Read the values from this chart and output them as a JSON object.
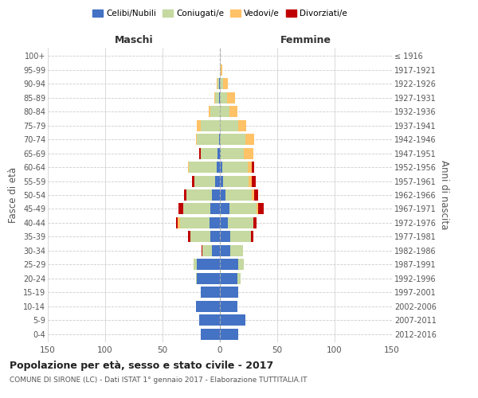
{
  "age_groups": [
    "0-4",
    "5-9",
    "10-14",
    "15-19",
    "20-24",
    "25-29",
    "30-34",
    "35-39",
    "40-44",
    "45-49",
    "50-54",
    "55-59",
    "60-64",
    "65-69",
    "70-74",
    "75-79",
    "80-84",
    "85-89",
    "90-94",
    "95-99",
    "100+"
  ],
  "birth_years": [
    "2012-2016",
    "2007-2011",
    "2002-2006",
    "1997-2001",
    "1992-1996",
    "1987-1991",
    "1982-1986",
    "1977-1981",
    "1972-1976",
    "1967-1971",
    "1962-1966",
    "1957-1961",
    "1952-1956",
    "1947-1951",
    "1942-1946",
    "1937-1941",
    "1932-1936",
    "1927-1931",
    "1922-1926",
    "1917-1921",
    "≤ 1916"
  ],
  "colors": {
    "celibi": "#4472c4",
    "coniugati": "#c5d9a0",
    "vedovi": "#ffc266",
    "divorziati": "#c00000",
    "background": "#ffffff",
    "grid": "#cccccc",
    "axis_text": "#555555"
  },
  "maschi": {
    "celibi": [
      17,
      18,
      21,
      17,
      20,
      20,
      7,
      8,
      9,
      8,
      7,
      4,
      3,
      2,
      1,
      0,
      0,
      1,
      1,
      0,
      0
    ],
    "coniugati": [
      0,
      0,
      0,
      0,
      1,
      3,
      8,
      18,
      26,
      24,
      22,
      18,
      24,
      15,
      19,
      17,
      8,
      3,
      1,
      0,
      0
    ],
    "vedovi": [
      0,
      0,
      0,
      0,
      0,
      0,
      0,
      0,
      2,
      0,
      0,
      0,
      1,
      0,
      1,
      3,
      2,
      1,
      1,
      0,
      0
    ],
    "divorziati": [
      0,
      0,
      0,
      0,
      0,
      0,
      1,
      2,
      1,
      4,
      2,
      2,
      0,
      1,
      0,
      0,
      0,
      0,
      0,
      0,
      0
    ]
  },
  "femmine": {
    "celibi": [
      16,
      22,
      15,
      16,
      15,
      16,
      9,
      9,
      7,
      8,
      5,
      3,
      2,
      1,
      0,
      0,
      0,
      0,
      0,
      0,
      0
    ],
    "coniugati": [
      0,
      0,
      0,
      0,
      3,
      5,
      11,
      18,
      22,
      24,
      23,
      22,
      22,
      20,
      22,
      16,
      8,
      6,
      3,
      1,
      0
    ],
    "vedovi": [
      0,
      0,
      0,
      0,
      0,
      0,
      0,
      0,
      0,
      1,
      2,
      3,
      4,
      8,
      8,
      7,
      7,
      7,
      4,
      1,
      0
    ],
    "divorziati": [
      0,
      0,
      0,
      0,
      0,
      0,
      0,
      2,
      3,
      5,
      3,
      3,
      2,
      0,
      0,
      0,
      0,
      0,
      0,
      0,
      0
    ]
  },
  "xlim": 150,
  "title": "Popolazione per età, sesso e stato civile - 2017",
  "subtitle": "COMUNE DI SIRONE (LC) - Dati ISTAT 1° gennaio 2017 - Elaborazione TUTTITALIA.IT",
  "xlabel_left": "Maschi",
  "xlabel_right": "Femmine",
  "ylabel_left": "Fasce di età",
  "ylabel_right": "Anni di nascita",
  "legend_labels": [
    "Celibi/Nubili",
    "Coniugati/e",
    "Vedovi/e",
    "Divorziati/e"
  ]
}
